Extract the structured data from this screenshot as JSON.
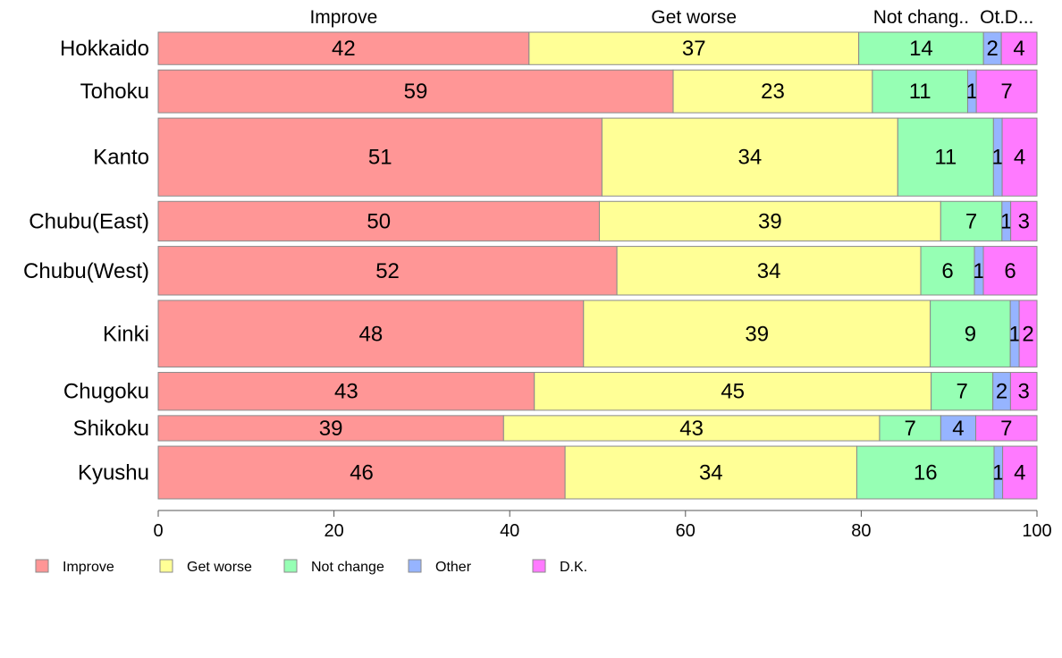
{
  "chart_data": {
    "type": "bar",
    "orientation": "horizontal",
    "stacked": true,
    "variable_width": true,
    "categories": [
      "Hokkaido",
      "Tohoku",
      "Kanto",
      "Chubu(East)",
      "Chubu(West)",
      "Kinki",
      "Chugoku",
      "Shikoku",
      "Kyushu"
    ],
    "series": [
      {
        "name": "Improve",
        "color": "#ff9696",
        "values": [
          42,
          59,
          51,
          50,
          52,
          48,
          43,
          39,
          46
        ]
      },
      {
        "name": "Get worse",
        "color": "#ffff96",
        "values": [
          37,
          23,
          34,
          39,
          34,
          39,
          45,
          43,
          34
        ]
      },
      {
        "name": "Not change",
        "color": "#96ffb4",
        "values": [
          14,
          11,
          11,
          7,
          6,
          9,
          7,
          7,
          16
        ]
      },
      {
        "name": "Other",
        "color": "#96b4ff",
        "values": [
          2,
          1,
          1,
          1,
          1,
          1,
          2,
          4,
          1
        ]
      },
      {
        "name": "D.K.",
        "color": "#ff7aff",
        "values": [
          4,
          7,
          4,
          3,
          6,
          2,
          3,
          7,
          4
        ]
      }
    ],
    "proportions": [
      42.2,
      58.6,
      50.5,
      50.2,
      52.2,
      48.4,
      42.8,
      39.3,
      46.3
    ],
    "group_sizes": [
      0.72,
      0.95,
      1.73,
      0.88,
      1.08,
      1.48,
      0.84,
      0.56,
      1.17
    ],
    "top_labels": [
      "Improve",
      "Get worse",
      "Not chang..",
      "Ot.",
      "D..."
    ],
    "xticks": [
      "0",
      "20",
      "40",
      "60",
      "80",
      "100"
    ],
    "xlim": [
      0,
      100
    ],
    "legend": [
      "Improve",
      "Get worse",
      "Not change",
      "Other",
      "D.K."
    ],
    "legend_position": "bottom"
  }
}
